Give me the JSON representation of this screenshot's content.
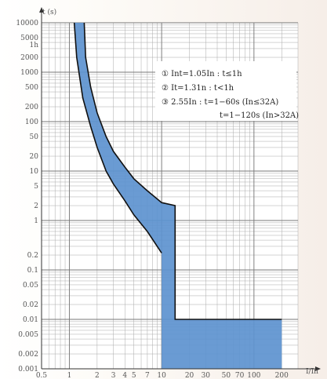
{
  "chart_data": {
    "type": "area",
    "title": "",
    "xlabel": "I/In",
    "ylabel": "t (s)",
    "xscale": "log",
    "yscale": "log",
    "xlim": [
      0.5,
      300
    ],
    "ylim": [
      0.001,
      10000
    ],
    "grid": true,
    "x_ticks": [
      {
        "value": 0.5,
        "label": "0.5"
      },
      {
        "value": 1,
        "label": "1"
      },
      {
        "value": 2,
        "label": "2"
      },
      {
        "value": 3,
        "label": "3"
      },
      {
        "value": 4,
        "label": "4"
      },
      {
        "value": 5,
        "label": "5"
      },
      {
        "value": 7,
        "label": "7"
      },
      {
        "value": 10,
        "label": "10"
      },
      {
        "value": 20,
        "label": "20"
      },
      {
        "value": 30,
        "label": "30"
      },
      {
        "value": 50,
        "label": "50"
      },
      {
        "value": 70,
        "label": "70"
      },
      {
        "value": 100,
        "label": "100"
      },
      {
        "value": 200,
        "label": "200"
      }
    ],
    "y_ticks": [
      {
        "value": 10000,
        "label": "10000"
      },
      {
        "value": 5000,
        "label": "5000"
      },
      {
        "value": 3600,
        "label": "1h"
      },
      {
        "value": 2000,
        "label": "2000"
      },
      {
        "value": 1000,
        "label": "1000"
      },
      {
        "value": 500,
        "label": "500"
      },
      {
        "value": 200,
        "label": "200"
      },
      {
        "value": 100,
        "label": "100"
      },
      {
        "value": 50,
        "label": "50"
      },
      {
        "value": 20,
        "label": "20"
      },
      {
        "value": 10,
        "label": "10"
      },
      {
        "value": 5,
        "label": "5"
      },
      {
        "value": 2,
        "label": "2"
      },
      {
        "value": 1,
        "label": "1"
      },
      {
        "value": 0.2,
        "label": "0.2"
      },
      {
        "value": 0.1,
        "label": "0.1"
      },
      {
        "value": 0.05,
        "label": "0.05"
      },
      {
        "value": 0.02,
        "label": "0.02"
      },
      {
        "value": 0.01,
        "label": "0.01"
      },
      {
        "value": 0.005,
        "label": "0.005"
      },
      {
        "value": 0.002,
        "label": "0.002"
      },
      {
        "value": 0.001,
        "label": "0.001"
      }
    ],
    "series": [
      {
        "role": "lower",
        "points": [
          [
            1.13,
            10000
          ],
          [
            1.2,
            2000
          ],
          [
            1.4,
            300
          ],
          [
            1.7,
            80
          ],
          [
            2,
            30
          ],
          [
            2.5,
            10
          ],
          [
            3,
            5.5
          ],
          [
            4,
            2.5
          ],
          [
            5,
            1.3
          ],
          [
            7,
            0.6
          ],
          [
            10,
            0.22
          ],
          [
            10,
            0.001
          ]
        ]
      },
      {
        "role": "upper",
        "points": [
          [
            1.45,
            10000
          ],
          [
            1.5,
            2000
          ],
          [
            1.7,
            500
          ],
          [
            2,
            150
          ],
          [
            2.5,
            50
          ],
          [
            3,
            25
          ],
          [
            4,
            12
          ],
          [
            5,
            7
          ],
          [
            7,
            4
          ],
          [
            10,
            2.3
          ],
          [
            14,
            2
          ],
          [
            14,
            0.01
          ],
          [
            200,
            0.01
          ],
          [
            200,
            0.001
          ]
        ]
      }
    ],
    "fill_color": "#5d92cf",
    "line_color": "#111111",
    "legend": {
      "placement": "top-right",
      "lines": [
        "①  Int=1.05In : t≤1h",
        "②  It=1.31n : t<1h",
        "③  2.55In : t=1−60s (In≤32A)",
        "t=1−120s (In>32A)"
      ]
    }
  }
}
